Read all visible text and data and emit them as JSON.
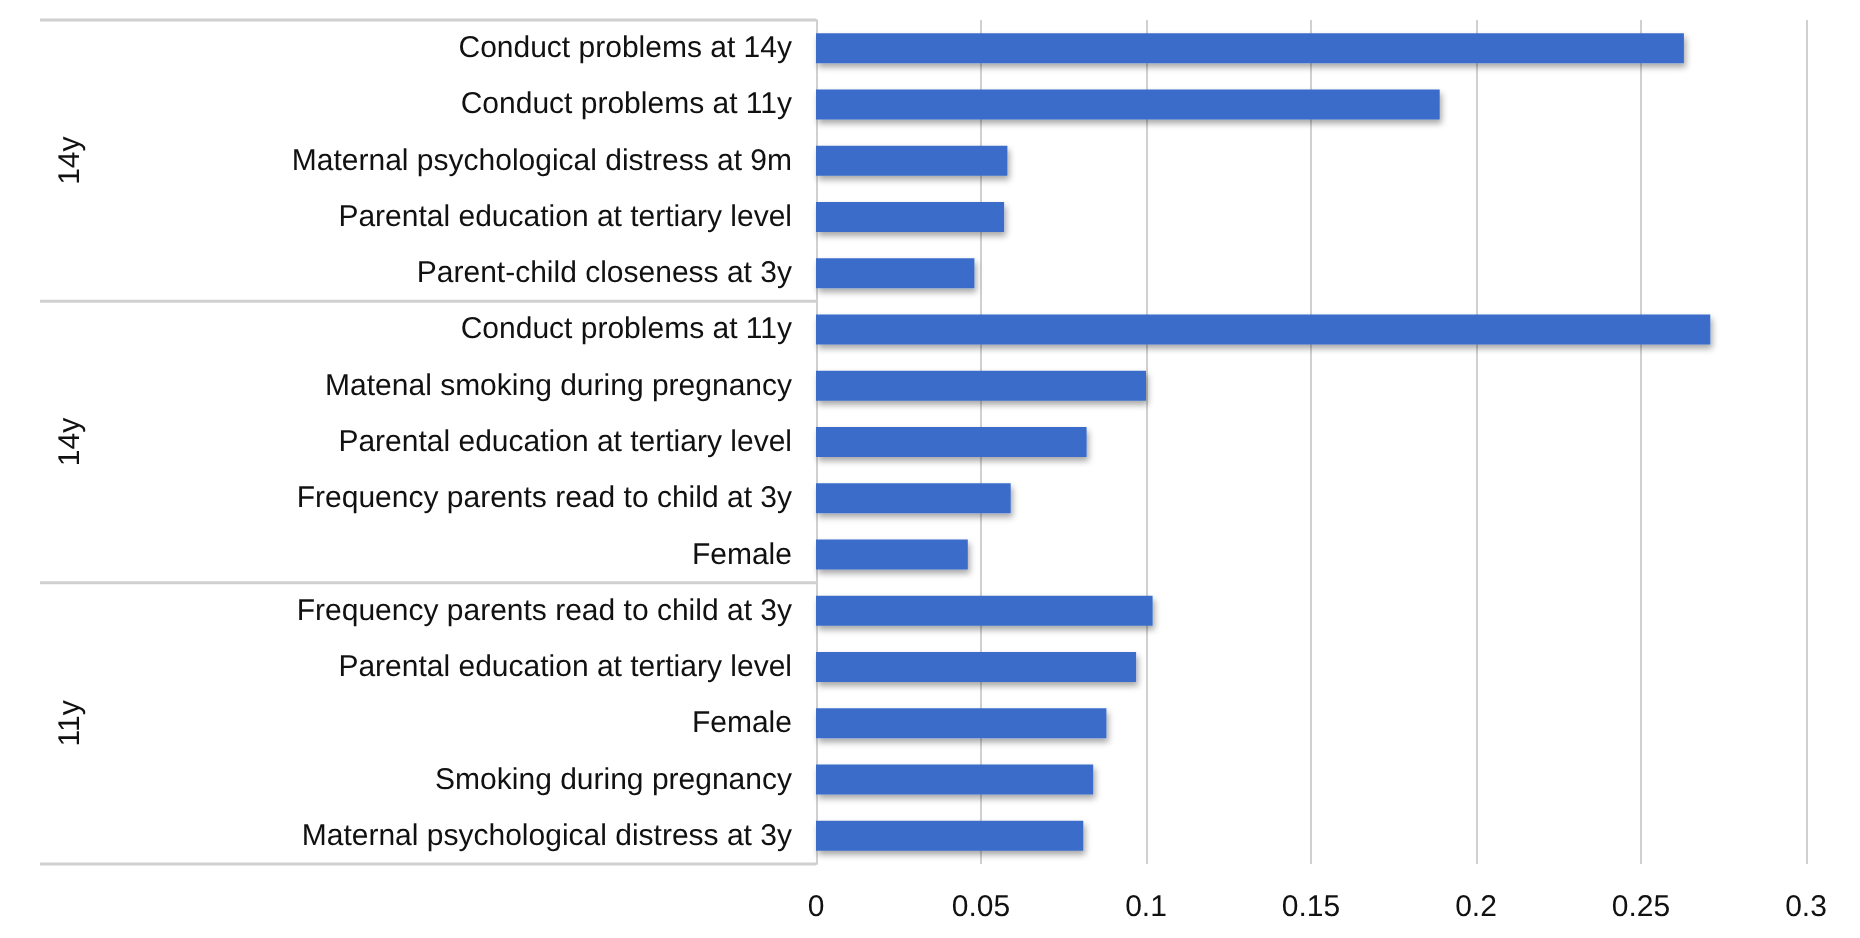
{
  "chart_data": {
    "type": "bar",
    "orientation": "horizontal",
    "categories": [
      "Conduct problems at 14y",
      "Conduct problems at 11y",
      "Maternal psychological distress at 9m",
      "Parental education at tertiary level",
      "Parent-child closeness at 3y",
      "Conduct problems at 11y",
      "Matenal smoking during pregnancy",
      "Parental education at tertiary level",
      "Frequency parents read to child at 3y",
      "Female",
      "Frequency parents read to child at 3y",
      "Parental education at tertiary level",
      "Female",
      "Smoking during pregnancy",
      "Maternal psychological distress at 3y"
    ],
    "values": [
      0.263,
      0.189,
      0.058,
      0.057,
      0.048,
      0.271,
      0.1,
      0.082,
      0.059,
      0.046,
      0.102,
      0.097,
      0.088,
      0.084,
      0.081
    ],
    "color": "#3a6cc9",
    "xlim": [
      0,
      0.3
    ],
    "xticks": [
      0,
      0.05,
      0.1,
      0.15,
      0.2,
      0.25,
      0.3
    ],
    "grid": "x",
    "annotations": [
      "14y",
      "14y",
      "11y"
    ]
  }
}
